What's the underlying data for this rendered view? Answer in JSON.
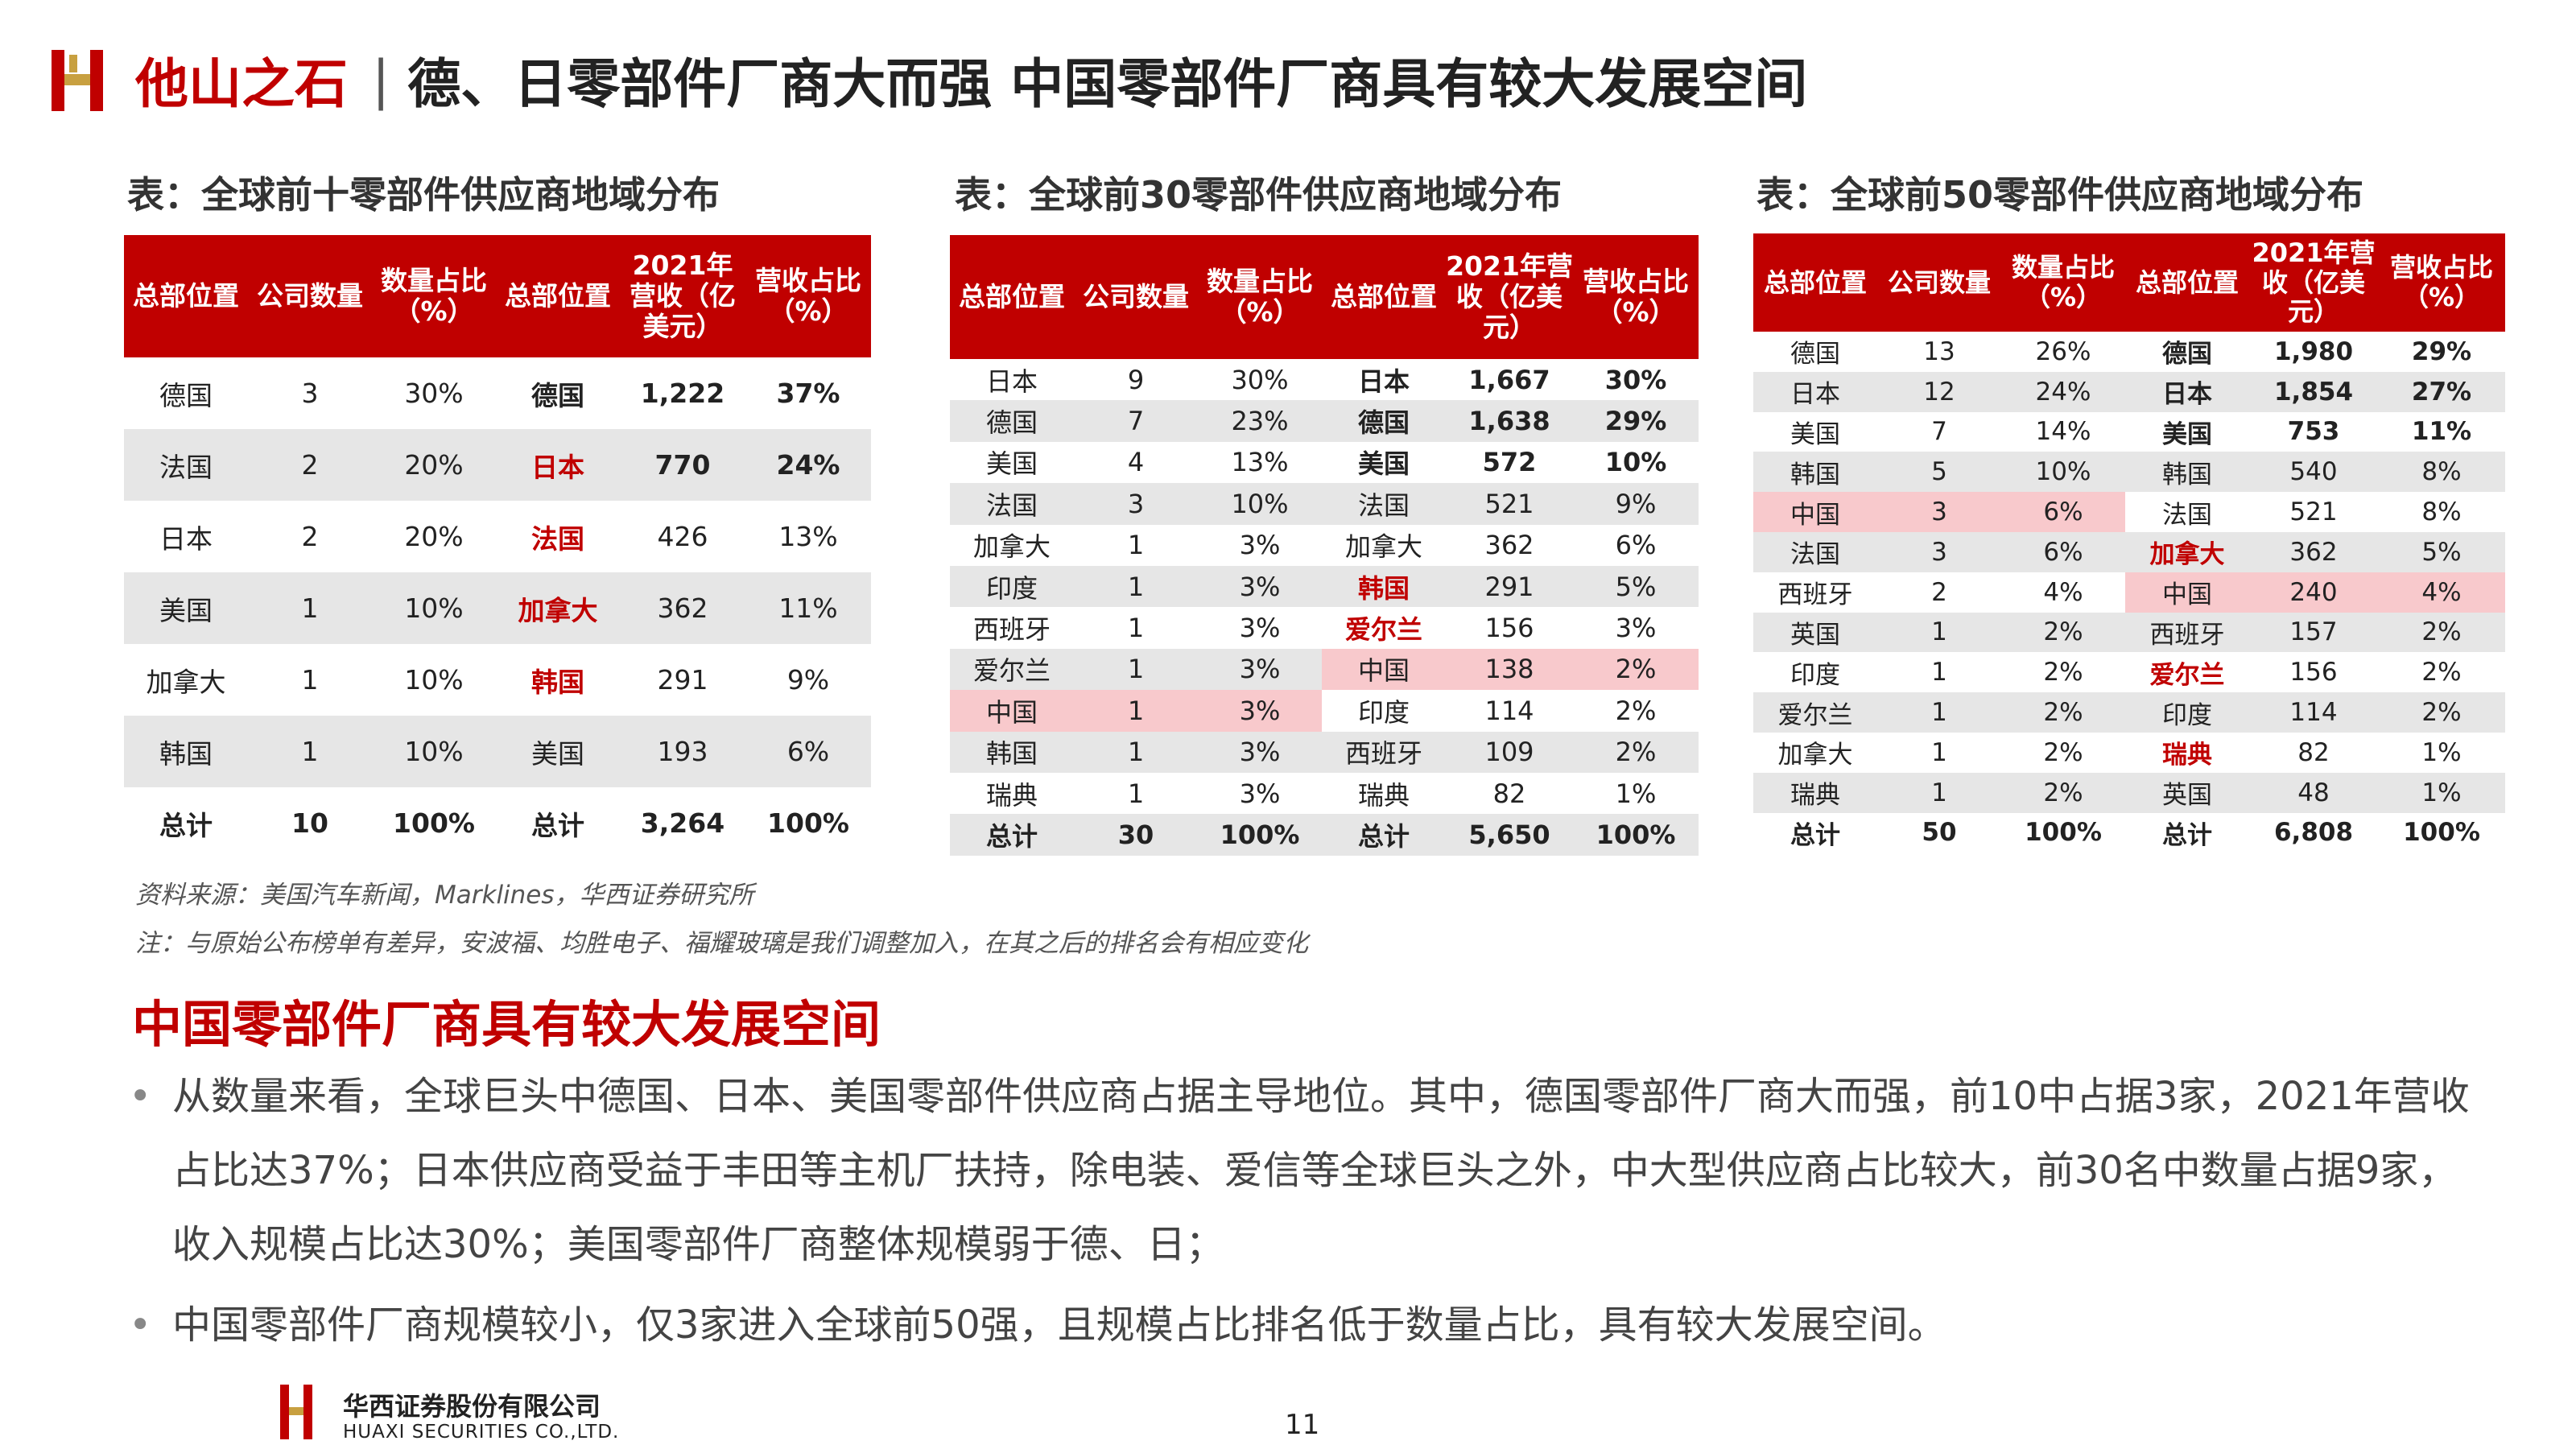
{
  "header": {
    "brand": "他山之石",
    "separator": "|",
    "title": "德、日零部件厂商大而强  中国零部件厂商具有较大发展空间"
  },
  "colors": {
    "accent": "#c00000",
    "highlight": "#f8c9cc",
    "stripe": "#e6e6e6"
  },
  "tables": {
    "top10": {
      "caption": "表：全球前十零部件供应商地域分布",
      "headers": [
        "总部位置",
        "公司数量",
        "数量占比（%）",
        "总部位置",
        "2021年营收（亿美元）",
        "营收占比（%）"
      ],
      "rows": [
        [
          "德国",
          "3",
          "30%",
          "德国",
          "1,222",
          "37%"
        ],
        [
          "法国",
          "2",
          "20%",
          "日本",
          "770",
          "24%"
        ],
        [
          "日本",
          "2",
          "20%",
          "法国",
          "426",
          "13%"
        ],
        [
          "美国",
          "1",
          "10%",
          "加拿大",
          "362",
          "11%"
        ],
        [
          "加拿大",
          "1",
          "10%",
          "韩国",
          "291",
          "9%"
        ],
        [
          "韩国",
          "1",
          "10%",
          "美国",
          "193",
          "6%"
        ]
      ],
      "total": [
        "总计",
        "10",
        "100%",
        "总计",
        "3,264",
        "100%"
      ]
    },
    "top30": {
      "caption": "表：全球前30零部件供应商地域分布",
      "headers": [
        "总部位置",
        "公司数量",
        "数量占比（%）",
        "总部位置",
        "2021年营收（亿美元）",
        "营收占比（%）"
      ],
      "rows": [
        [
          "日本",
          "9",
          "30%",
          "日本",
          "1,667",
          "30%"
        ],
        [
          "德国",
          "7",
          "23%",
          "德国",
          "1,638",
          "29%"
        ],
        [
          "美国",
          "4",
          "13%",
          "美国",
          "572",
          "10%"
        ],
        [
          "法国",
          "3",
          "10%",
          "法国",
          "521",
          "9%"
        ],
        [
          "加拿大",
          "1",
          "3%",
          "加拿大",
          "362",
          "6%"
        ],
        [
          "印度",
          "1",
          "3%",
          "韩国",
          "291",
          "5%"
        ],
        [
          "西班牙",
          "1",
          "3%",
          "爱尔兰",
          "156",
          "3%"
        ],
        [
          "爱尔兰",
          "1",
          "3%",
          "中国",
          "138",
          "2%"
        ],
        [
          "中国",
          "1",
          "3%",
          "印度",
          "114",
          "2%"
        ],
        [
          "韩国",
          "1",
          "3%",
          "西班牙",
          "109",
          "2%"
        ],
        [
          "瑞典",
          "1",
          "3%",
          "瑞典",
          "82",
          "1%"
        ]
      ],
      "total": [
        "总计",
        "30",
        "100%",
        "总计",
        "5,650",
        "100%"
      ]
    },
    "top50": {
      "caption": "表：全球前50零部件供应商地域分布",
      "headers": [
        "总部位置",
        "公司数量",
        "数量占比（%）",
        "总部位置",
        "2021年营收（亿美元）",
        "营收占比（%）"
      ],
      "rows": [
        [
          "德国",
          "13",
          "26%",
          "德国",
          "1,980",
          "29%"
        ],
        [
          "日本",
          "12",
          "24%",
          "日本",
          "1,854",
          "27%"
        ],
        [
          "美国",
          "7",
          "14%",
          "美国",
          "753",
          "11%"
        ],
        [
          "韩国",
          "5",
          "10%",
          "韩国",
          "540",
          "8%"
        ],
        [
          "中国",
          "3",
          "6%",
          "法国",
          "521",
          "8%"
        ],
        [
          "法国",
          "3",
          "6%",
          "加拿大",
          "362",
          "5%"
        ],
        [
          "西班牙",
          "2",
          "4%",
          "中国",
          "240",
          "4%"
        ],
        [
          "英国",
          "1",
          "2%",
          "西班牙",
          "157",
          "2%"
        ],
        [
          "印度",
          "1",
          "2%",
          "爱尔兰",
          "156",
          "2%"
        ],
        [
          "爱尔兰",
          "1",
          "2%",
          "印度",
          "114",
          "2%"
        ],
        [
          "加拿大",
          "1",
          "2%",
          "瑞典",
          "82",
          "1%"
        ],
        [
          "瑞典",
          "1",
          "2%",
          "英国",
          "48",
          "1%"
        ]
      ],
      "total": [
        "总计",
        "50",
        "100%",
        "总计",
        "6,808",
        "100%"
      ]
    }
  },
  "notes": {
    "source": "资料来源：美国汽车新闻，Marklines，华西证券研究所",
    "remark": "注：与原始公布榜单有差异，安波福、均胜电子、福耀玻璃是我们调整加入，在其之后的排名会有相应变化"
  },
  "section": {
    "title": "中国零部件厂商具有较大发展空间",
    "bullets": [
      "从数量来看，全球巨头中德国、日本、美国零部件供应商占据主导地位。其中，德国零部件厂商大而强，前10中占据3家，2021年营收占比达37%；日本供应商受益于丰田等主机厂扶持，除电装、爱信等全球巨头之外，中大型供应商占比较大，前30名中数量占据9家，收入规模占比达30%；美国零部件厂商整体规模弱于德、日；",
      "中国零部件厂商规模较小，仅3家进入全球前50强，且规模占比排名低于数量占比，具有较大发展空间。"
    ]
  },
  "footer": {
    "company_cn": "华西证券股份有限公司",
    "company_en": "HUAXI SECURITIES CO.,LTD.",
    "page": "11"
  }
}
